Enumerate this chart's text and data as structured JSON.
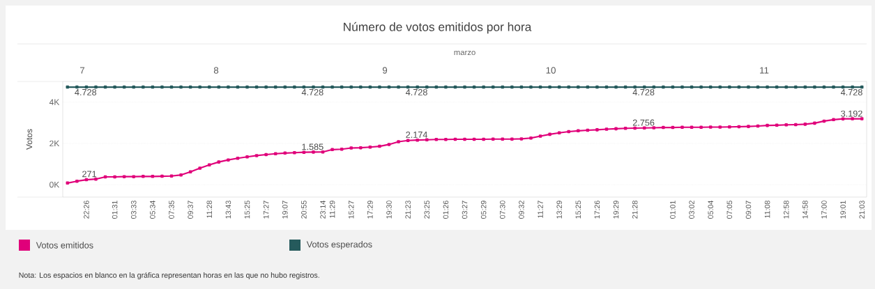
{
  "chart_data": {
    "type": "line",
    "title": "Número de votos emitidos por hora",
    "ylabel": "Votos",
    "annotations": [
      "marzo",
      "7",
      "8",
      "9",
      "10",
      "11",
      "Nota: Los espacios en blanco en la gráfica representan horas en las que no hubo registros."
    ],
    "ylim": [
      -600,
      5000
    ],
    "yticks": [
      {
        "value": 0,
        "label": "0K"
      },
      {
        "value": 2000,
        "label": "2K"
      },
      {
        "value": 4000,
        "label": "4K"
      }
    ],
    "grid": "y",
    "marker": "square",
    "legend": "bottom",
    "categories": [
      null,
      null,
      "22:26",
      null,
      null,
      "01:31",
      null,
      "03:33",
      null,
      "05:34",
      null,
      "07:35",
      null,
      "09:37",
      null,
      "11:28",
      null,
      "13:43",
      null,
      "15:25",
      null,
      "17:27",
      null,
      "19:07",
      null,
      "20:55",
      null,
      "23:14",
      "11:29",
      null,
      "15:27",
      null,
      "17:29",
      null,
      "19:30",
      null,
      "21:23",
      null,
      "23:25",
      null,
      "01:26",
      null,
      "03:27",
      null,
      "05:29",
      null,
      "07:30",
      null,
      "09:32",
      null,
      "11:27",
      null,
      "13:29",
      null,
      "15:25",
      null,
      "17:26",
      null,
      "19:29",
      null,
      "21:28",
      null,
      null,
      null,
      "01:01",
      null,
      "03:02",
      null,
      "05:04",
      null,
      "07:05",
      null,
      "09:07",
      null,
      "11:08",
      null,
      "12:58",
      null,
      "14:58",
      null,
      "17:00",
      null,
      "19:01",
      null,
      "21:03"
    ],
    "series": [
      {
        "name": "Votos emitidos",
        "color": "#e0007a",
        "values": [
          80,
          170,
          240,
          271,
          380,
          380,
          390,
          390,
          400,
          400,
          410,
          420,
          470,
          620,
          800,
          960,
          1100,
          1200,
          1280,
          1350,
          1410,
          1460,
          1500,
          1530,
          1550,
          1570,
          1580,
          1585,
          1700,
          1720,
          1780,
          1790,
          1820,
          1860,
          1950,
          2080,
          2140,
          2160,
          2174,
          2190,
          2190,
          2200,
          2200,
          2200,
          2200,
          2210,
          2210,
          2210,
          2220,
          2260,
          2350,
          2440,
          2510,
          2570,
          2610,
          2640,
          2660,
          2690,
          2710,
          2730,
          2740,
          2750,
          2756,
          2770,
          2770,
          2780,
          2780,
          2780,
          2790,
          2790,
          2800,
          2810,
          2820,
          2840,
          2870,
          2880,
          2900,
          2910,
          2930,
          2980,
          3080,
          3150,
          3190,
          3192,
          3192
        ],
        "value_labels": [
          null,
          null,
          null,
          "271",
          null,
          null,
          null,
          null,
          null,
          null,
          null,
          null,
          null,
          null,
          null,
          null,
          null,
          null,
          null,
          null,
          null,
          null,
          null,
          null,
          null,
          null,
          null,
          "1.585",
          null,
          null,
          null,
          null,
          null,
          null,
          null,
          null,
          null,
          null,
          "2.174",
          null,
          null,
          null,
          null,
          null,
          null,
          null,
          null,
          null,
          null,
          null,
          null,
          null,
          null,
          null,
          null,
          null,
          null,
          null,
          null,
          null,
          null,
          null,
          "2.756",
          null,
          null,
          null,
          null,
          null,
          null,
          null,
          null,
          null,
          null,
          null,
          null,
          null,
          null,
          null,
          null,
          null,
          null,
          null,
          null,
          null,
          "3.192"
        ]
      },
      {
        "name": "Votos esperados",
        "color": "#255a5c",
        "values": [
          4728,
          4728,
          4728,
          4728,
          4728,
          4728,
          4728,
          4728,
          4728,
          4728,
          4728,
          4728,
          4728,
          4728,
          4728,
          4728,
          4728,
          4728,
          4728,
          4728,
          4728,
          4728,
          4728,
          4728,
          4728,
          4728,
          4728,
          4728,
          4728,
          4728,
          4728,
          4728,
          4728,
          4728,
          4728,
          4728,
          4728,
          4728,
          4728,
          4728,
          4728,
          4728,
          4728,
          4728,
          4728,
          4728,
          4728,
          4728,
          4728,
          4728,
          4728,
          4728,
          4728,
          4728,
          4728,
          4728,
          4728,
          4728,
          4728,
          4728,
          4728,
          4728,
          4728,
          4728,
          4728,
          4728,
          4728,
          4728,
          4728,
          4728,
          4728,
          4728,
          4728,
          4728,
          4728,
          4728,
          4728,
          4728,
          4728,
          4728,
          4728,
          4728,
          4728,
          4728,
          4728
        ],
        "value_labels": [
          null,
          null,
          null,
          "4.728",
          null,
          null,
          null,
          null,
          null,
          null,
          null,
          null,
          null,
          null,
          null,
          null,
          null,
          null,
          null,
          null,
          null,
          null,
          null,
          null,
          null,
          null,
          null,
          "4.728",
          null,
          null,
          null,
          null,
          null,
          null,
          null,
          null,
          null,
          null,
          "4.728",
          null,
          null,
          null,
          null,
          null,
          null,
          null,
          null,
          null,
          null,
          null,
          null,
          null,
          null,
          null,
          null,
          null,
          null,
          null,
          null,
          null,
          null,
          null,
          "4.728",
          null,
          null,
          null,
          null,
          null,
          null,
          null,
          null,
          null,
          null,
          null,
          null,
          null,
          null,
          null,
          null,
          null,
          null,
          null,
          null,
          null,
          "4.728"
        ]
      }
    ]
  }
}
